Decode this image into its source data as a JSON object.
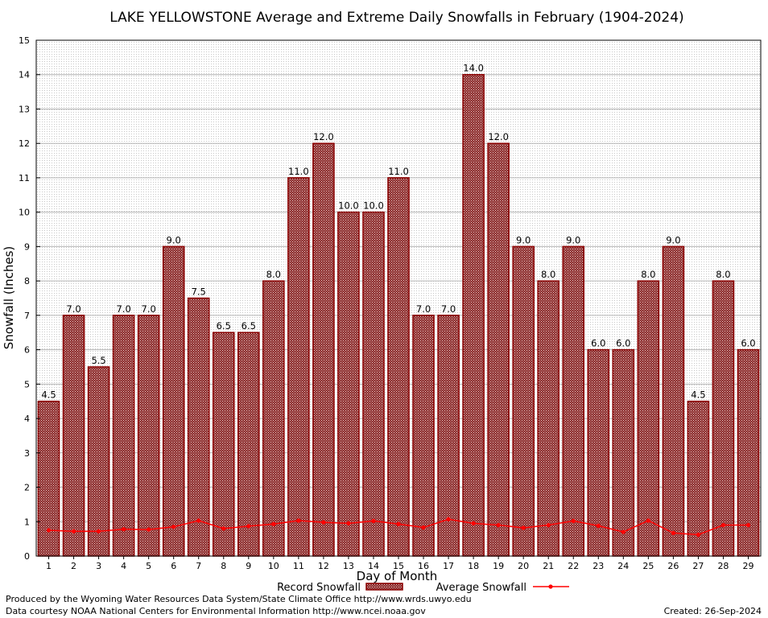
{
  "chart_data": {
    "type": "bar",
    "title": "LAKE YELLOWSTONE Average and Extreme Daily Snowfalls in February (1904-2024)",
    "xlabel": "Day of Month",
    "ylabel": "Snowfall (Inches)",
    "ylim": [
      0,
      15
    ],
    "yticks": [
      "0",
      "1",
      "2",
      "3",
      "4",
      "5",
      "6",
      "7",
      "8",
      "9",
      "10",
      "11",
      "12",
      "13",
      "14",
      "15"
    ],
    "categories": [
      "1",
      "2",
      "3",
      "4",
      "5",
      "6",
      "7",
      "8",
      "9",
      "10",
      "11",
      "12",
      "13",
      "14",
      "15",
      "16",
      "17",
      "18",
      "19",
      "20",
      "21",
      "22",
      "23",
      "24",
      "25",
      "26",
      "27",
      "28",
      "29"
    ],
    "series": [
      {
        "name": "Record Snowfall",
        "kind": "bar",
        "color": "#8b0000",
        "values": [
          4.5,
          7.0,
          5.5,
          7.0,
          7.0,
          9.0,
          7.5,
          6.5,
          6.5,
          8.0,
          11.0,
          12.0,
          10.0,
          10.0,
          11.0,
          7.0,
          7.0,
          14.0,
          12.0,
          9.0,
          8.0,
          9.0,
          6.0,
          6.0,
          8.0,
          9.0,
          4.5,
          8.0,
          6.0
        ],
        "labels": [
          "4.5",
          "7.0",
          "5.5",
          "7.0",
          "7.0",
          "9.0",
          "7.5",
          "6.5",
          "6.5",
          "8.0",
          "11.0",
          "12.0",
          "10.0",
          "10.0",
          "11.0",
          "7.0",
          "7.0",
          "14.0",
          "12.0",
          "9.0",
          "8.0",
          "9.0",
          "6.0",
          "6.0",
          "8.0",
          "9.0",
          "4.5",
          "8.0",
          "6.0"
        ]
      },
      {
        "name": "Average Snowfall",
        "kind": "line",
        "color": "#ff0000",
        "values": [
          0.75,
          0.72,
          0.72,
          0.78,
          0.77,
          0.85,
          1.03,
          0.8,
          0.87,
          0.93,
          1.03,
          0.98,
          0.95,
          1.02,
          0.93,
          0.83,
          1.07,
          0.95,
          0.9,
          0.82,
          0.9,
          1.02,
          0.88,
          0.7,
          1.03,
          0.67,
          0.62,
          0.9,
          0.9
        ]
      }
    ],
    "grid": true,
    "legend": "bottom-center"
  },
  "footer": {
    "producer": "Produced by the Wyoming Water Resources Data System/State Climate Office http://www.wrds.uwyo.edu",
    "courtesy": "Data courtesy NOAA National Centers for Environmental Information http://www.ncei.noaa.gov",
    "created": "Created:  26-Sep-2024"
  }
}
